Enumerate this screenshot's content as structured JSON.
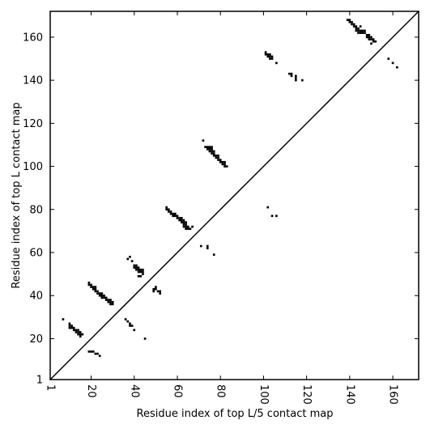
{
  "chart_data": {
    "type": "heatmap",
    "title": "",
    "xlabel": "Residue index of top L/5 contact map",
    "ylabel": "Residue index of top L contact map",
    "xlim": [
      1,
      172
    ],
    "ylim": [
      1,
      172
    ],
    "x_ticks": [
      1,
      20,
      40,
      60,
      80,
      100,
      120,
      140,
      160
    ],
    "y_ticks": [
      1,
      20,
      40,
      60,
      80,
      100,
      120,
      140,
      160
    ],
    "diagonal": true,
    "grid": false,
    "mark_color": "#000000",
    "lower_triangle_contacts": [
      [
        19,
        14
      ],
      [
        20,
        14
      ],
      [
        21,
        14
      ],
      [
        22,
        13
      ],
      [
        23,
        13
      ],
      [
        24,
        12
      ],
      [
        36,
        29
      ],
      [
        37,
        28
      ],
      [
        38,
        27
      ],
      [
        38,
        26
      ],
      [
        39,
        26
      ],
      [
        40,
        24
      ],
      [
        45,
        20
      ],
      [
        49,
        43
      ],
      [
        49,
        42
      ],
      [
        50,
        43
      ],
      [
        50,
        44
      ],
      [
        51,
        42
      ],
      [
        52,
        42
      ],
      [
        52,
        41
      ],
      [
        71,
        63
      ],
      [
        74,
        63
      ],
      [
        74,
        62
      ],
      [
        77,
        59
      ],
      [
        102,
        81
      ],
      [
        104,
        77
      ],
      [
        106,
        77
      ],
      [
        158,
        150
      ],
      [
        160,
        148
      ],
      [
        162,
        146
      ]
    ],
    "upper_triangle_contacts": [
      [
        7,
        29
      ],
      [
        10,
        27
      ],
      [
        10,
        26
      ],
      [
        10,
        25
      ],
      [
        11,
        26
      ],
      [
        11,
        25
      ],
      [
        12,
        25
      ],
      [
        12,
        24
      ],
      [
        13,
        24
      ],
      [
        13,
        23
      ],
      [
        14,
        24
      ],
      [
        14,
        23
      ],
      [
        14,
        22
      ],
      [
        15,
        23
      ],
      [
        15,
        22
      ],
      [
        15,
        21
      ],
      [
        16,
        22
      ],
      [
        19,
        46
      ],
      [
        19,
        45
      ],
      [
        20,
        45
      ],
      [
        20,
        44
      ],
      [
        21,
        44
      ],
      [
        21,
        43
      ],
      [
        22,
        44
      ],
      [
        22,
        43
      ],
      [
        22,
        42
      ],
      [
        23,
        42
      ],
      [
        23,
        41
      ],
      [
        24,
        41
      ],
      [
        24,
        40
      ],
      [
        25,
        41
      ],
      [
        25,
        40
      ],
      [
        25,
        39
      ],
      [
        26,
        40
      ],
      [
        26,
        39
      ],
      [
        27,
        39
      ],
      [
        27,
        38
      ],
      [
        28,
        38
      ],
      [
        28,
        37
      ],
      [
        29,
        38
      ],
      [
        29,
        37
      ],
      [
        29,
        36
      ],
      [
        30,
        37
      ],
      [
        30,
        36
      ],
      [
        37,
        57
      ],
      [
        38,
        58
      ],
      [
        39,
        56
      ],
      [
        40,
        54
      ],
      [
        40,
        53
      ],
      [
        41,
        54
      ],
      [
        41,
        53
      ],
      [
        41,
        52
      ],
      [
        42,
        53
      ],
      [
        42,
        52
      ],
      [
        42,
        51
      ],
      [
        42,
        49
      ],
      [
        43,
        52
      ],
      [
        43,
        51
      ],
      [
        43,
        49
      ],
      [
        44,
        52
      ],
      [
        44,
        51
      ],
      [
        44,
        50
      ],
      [
        55,
        81
      ],
      [
        55,
        80
      ],
      [
        56,
        80
      ],
      [
        56,
        79
      ],
      [
        57,
        79
      ],
      [
        57,
        78
      ],
      [
        58,
        78
      ],
      [
        58,
        77
      ],
      [
        59,
        78
      ],
      [
        59,
        77
      ],
      [
        60,
        77
      ],
      [
        60,
        76
      ],
      [
        61,
        76
      ],
      [
        61,
        75
      ],
      [
        62,
        76
      ],
      [
        62,
        75
      ],
      [
        62,
        74
      ],
      [
        63,
        75
      ],
      [
        63,
        74
      ],
      [
        63,
        73
      ],
      [
        63,
        72
      ],
      [
        64,
        74
      ],
      [
        64,
        73
      ],
      [
        64,
        72
      ],
      [
        64,
        71
      ],
      [
        65,
        72
      ],
      [
        65,
        71
      ],
      [
        66,
        71
      ],
      [
        67,
        72
      ],
      [
        72,
        112
      ],
      [
        73,
        109
      ],
      [
        74,
        109
      ],
      [
        74,
        108
      ],
      [
        75,
        109
      ],
      [
        75,
        108
      ],
      [
        75,
        107
      ],
      [
        76,
        109
      ],
      [
        76,
        108
      ],
      [
        76,
        107
      ],
      [
        76,
        106
      ],
      [
        77,
        107
      ],
      [
        77,
        106
      ],
      [
        77,
        105
      ],
      [
        78,
        105
      ],
      [
        78,
        104
      ],
      [
        79,
        105
      ],
      [
        79,
        104
      ],
      [
        79,
        103
      ],
      [
        80,
        103
      ],
      [
        80,
        102
      ],
      [
        81,
        102
      ],
      [
        81,
        101
      ],
      [
        82,
        102
      ],
      [
        82,
        101
      ],
      [
        82,
        100
      ],
      [
        83,
        100
      ],
      [
        101,
        153
      ],
      [
        101,
        152
      ],
      [
        102,
        152
      ],
      [
        102,
        151
      ],
      [
        103,
        152
      ],
      [
        103,
        151
      ],
      [
        103,
        150
      ],
      [
        104,
        151
      ],
      [
        104,
        150
      ],
      [
        106,
        148
      ],
      [
        112,
        143
      ],
      [
        113,
        143
      ],
      [
        113,
        142
      ],
      [
        115,
        142
      ],
      [
        115,
        141
      ],
      [
        115,
        140
      ],
      [
        118,
        140
      ],
      [
        139,
        168
      ],
      [
        140,
        168
      ],
      [
        140,
        167
      ],
      [
        141,
        167
      ],
      [
        141,
        166
      ],
      [
        142,
        166
      ],
      [
        142,
        165
      ],
      [
        143,
        165
      ],
      [
        143,
        164
      ],
      [
        143,
        163
      ],
      [
        144,
        164
      ],
      [
        144,
        163
      ],
      [
        144,
        162
      ],
      [
        145,
        165
      ],
      [
        145,
        163
      ],
      [
        145,
        162
      ],
      [
        146,
        163
      ],
      [
        146,
        162
      ],
      [
        147,
        163
      ],
      [
        147,
        162
      ],
      [
        148,
        161
      ],
      [
        148,
        160
      ],
      [
        149,
        161
      ],
      [
        149,
        160
      ],
      [
        149,
        159
      ],
      [
        150,
        160
      ],
      [
        150,
        159
      ],
      [
        150,
        157
      ],
      [
        151,
        159
      ],
      [
        151,
        158
      ],
      [
        152,
        158
      ]
    ]
  }
}
